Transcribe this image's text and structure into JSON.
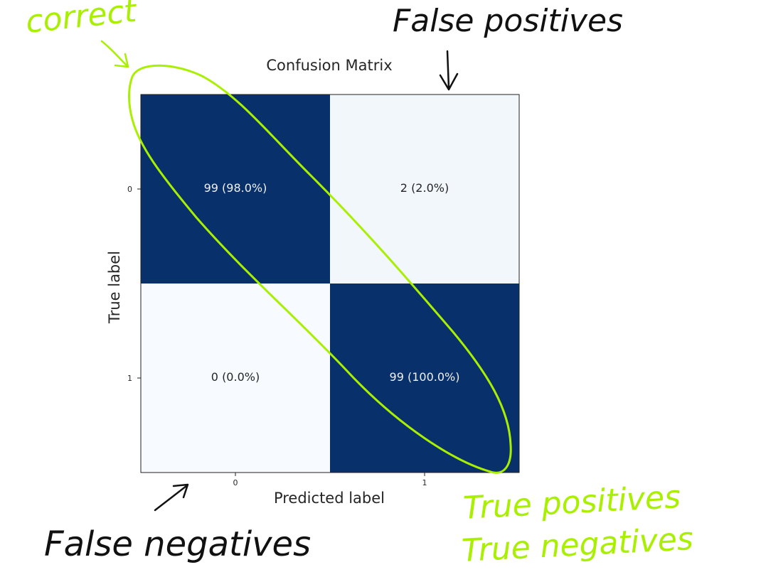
{
  "chart_data": {
    "type": "heatmap",
    "title": "Confusion Matrix",
    "xlabel": "Predicted label",
    "ylabel": "True label",
    "x_ticks": [
      "0",
      "1"
    ],
    "y_ticks": [
      "0",
      "1"
    ],
    "matrix": [
      [
        99,
        2
      ],
      [
        0,
        99
      ]
    ],
    "cell_labels": [
      [
        "99 (98.0%)",
        "2 (2.0%)"
      ],
      [
        "0 (0.0%)",
        "99 (100.0%)"
      ]
    ],
    "colormap": "Blues",
    "colors": {
      "high": "#08306b",
      "low": "#f7fbff",
      "text_dark": "#262626",
      "text_light": "#f0f0f0"
    }
  },
  "annotations": {
    "correct": "correct",
    "false_positives": "False positives",
    "false_negatives": "False negatives",
    "true_positives": "True positives",
    "true_negatives": "True negatives",
    "green_color": "#a8f000",
    "black_color": "#111111"
  }
}
